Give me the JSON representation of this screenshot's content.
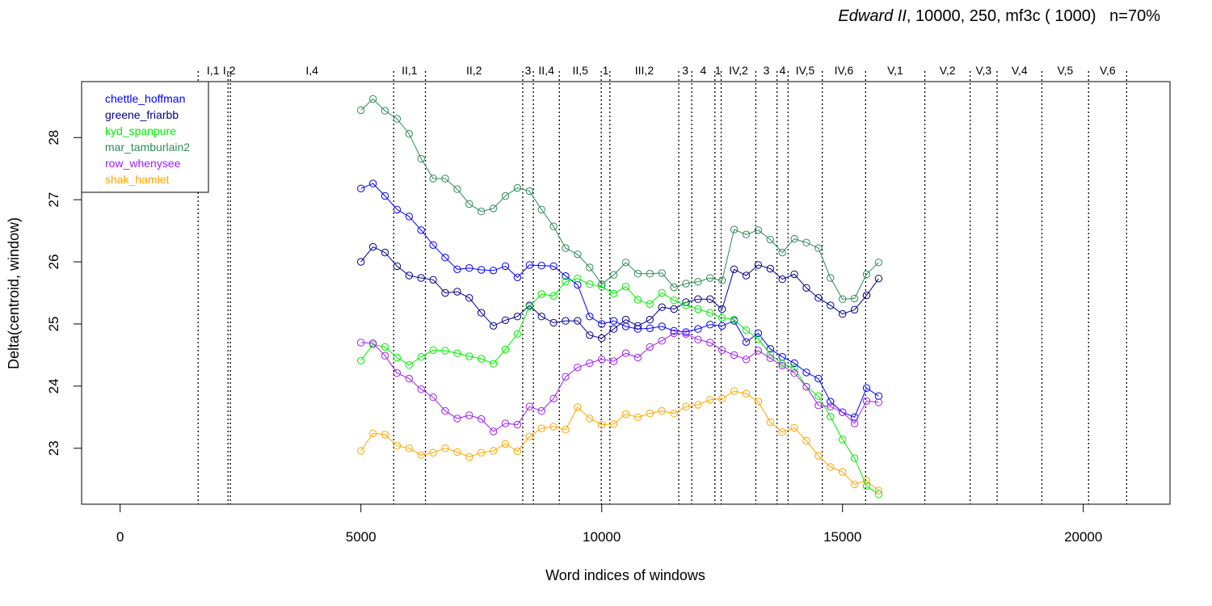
{
  "chart_data": {
    "type": "line",
    "title_italic": "Edward II",
    "title_rest": ", 10000, 250, mf3c ( 1000)   n=70%",
    "xlabel": "Word indices of windows",
    "ylabel": "Delta(centroid, window)",
    "xlim": [
      -800,
      21800
    ],
    "ylim": [
      22.1,
      28.9
    ],
    "xticks": [
      0,
      5000,
      10000,
      15000,
      20000
    ],
    "yticks": [
      23,
      24,
      25,
      26,
      27,
      28
    ],
    "grid": false,
    "legend_position": "top-left",
    "scenes": [
      {
        "label": "I,1",
        "x": 1620
      },
      {
        "label": "I,2",
        "x": 2240
      },
      {
        "label": "I,4",
        "x": 2290
      },
      {
        "label": "II,1",
        "x": 5680
      },
      {
        "label": "II,2",
        "x": 6340
      },
      {
        "label": "3",
        "x": 8360
      },
      {
        "label": "II,4",
        "x": 8580
      },
      {
        "label": "II,5",
        "x": 9120
      },
      {
        "label": "1",
        "x": 9990
      },
      {
        "label": "III,2",
        "x": 10170
      },
      {
        "label": "3",
        "x": 11600
      },
      {
        "label": "4",
        "x": 11870
      },
      {
        "label": "1",
        "x": 12350
      },
      {
        "label": "IV,2",
        "x": 12480
      },
      {
        "label": "3",
        "x": 13200
      },
      {
        "label": "4",
        "x": 13640
      },
      {
        "label": "IV,5",
        "x": 13870
      },
      {
        "label": "IV,6",
        "x": 14580
      },
      {
        "label": "V,1",
        "x": 15480
      },
      {
        "label": "V,2",
        "x": 16710
      },
      {
        "label": "V,3",
        "x": 17650
      },
      {
        "label": "V,4",
        "x": 18210
      },
      {
        "label": "V,5",
        "x": 19140
      },
      {
        "label": "V,6",
        "x": 20110
      },
      {
        "label": "",
        "x": 20900
      }
    ],
    "x": [
      5000,
      5250,
      5500,
      5750,
      6000,
      6250,
      6500,
      6750,
      7000,
      7250,
      7500,
      7750,
      8000,
      8250,
      8500,
      8750,
      9000,
      9250,
      9500,
      9750,
      10000,
      10250,
      10500,
      10750,
      11000,
      11250,
      11500,
      11750,
      12000,
      12250,
      12500,
      12750,
      13000,
      13250,
      13500,
      13750,
      14000,
      14250,
      14500,
      14750,
      15000,
      15250,
      15500,
      15750
    ],
    "series": [
      {
        "name": "chettle_hoffman",
        "color": "#0000ff",
        "values": [
          27.18,
          27.26,
          27.06,
          26.84,
          26.73,
          26.51,
          26.27,
          26.07,
          25.88,
          25.9,
          25.87,
          25.86,
          25.93,
          25.75,
          25.95,
          25.94,
          25.93,
          25.77,
          25.63,
          25.12,
          25.0,
          25.05,
          24.96,
          24.92,
          24.93,
          24.96,
          24.89,
          24.87,
          24.92,
          24.99,
          24.97,
          25.05,
          24.71,
          24.85,
          24.6,
          24.47,
          24.37,
          24.22,
          24.12,
          23.75,
          23.58,
          23.5,
          23.97,
          23.84
        ]
      },
      {
        "name": "greene_friarbb",
        "color": "#00008b",
        "values": [
          26.0,
          26.24,
          26.15,
          25.93,
          25.78,
          25.74,
          25.71,
          25.5,
          25.52,
          25.42,
          25.18,
          24.97,
          25.06,
          25.12,
          25.3,
          25.12,
          25.02,
          25.05,
          25.05,
          24.82,
          24.77,
          24.92,
          25.07,
          24.97,
          25.07,
          25.27,
          25.24,
          25.35,
          25.4,
          25.4,
          25.24,
          25.88,
          25.78,
          25.95,
          25.89,
          25.72,
          25.8,
          25.58,
          25.42,
          25.3,
          25.16,
          25.23,
          25.46,
          25.73
        ]
      },
      {
        "name": "kyd_spanpure",
        "color": "#00ee00",
        "values": [
          24.41,
          24.67,
          24.63,
          24.46,
          24.34,
          24.47,
          24.58,
          24.57,
          24.53,
          24.48,
          24.44,
          24.36,
          24.59,
          24.84,
          25.28,
          25.48,
          25.45,
          25.68,
          25.73,
          25.64,
          25.6,
          25.49,
          25.6,
          25.39,
          25.32,
          25.5,
          25.38,
          25.3,
          25.24,
          25.18,
          25.1,
          25.07,
          24.9,
          24.76,
          24.51,
          24.36,
          24.29,
          23.99,
          23.84,
          23.51,
          23.14,
          22.84,
          22.39,
          22.26
        ]
      },
      {
        "name": "mar_tamburlain2",
        "color": "#2e8b57",
        "values": [
          28.44,
          28.62,
          28.43,
          28.3,
          28.06,
          27.66,
          27.34,
          27.34,
          27.17,
          26.93,
          26.81,
          26.86,
          27.06,
          27.19,
          27.14,
          26.84,
          26.57,
          26.22,
          26.12,
          25.91,
          25.64,
          25.79,
          25.99,
          25.81,
          25.81,
          25.82,
          25.59,
          25.65,
          25.68,
          25.74,
          25.7,
          26.52,
          26.44,
          26.51,
          26.36,
          26.15,
          26.37,
          26.31,
          26.22,
          25.74,
          25.4,
          25.41,
          25.8,
          25.99
        ]
      },
      {
        "name": "row_whenysee",
        "color": "#a020f0",
        "values": [
          24.7,
          24.69,
          24.49,
          24.21,
          24.12,
          23.95,
          23.82,
          23.6,
          23.48,
          23.53,
          23.47,
          23.27,
          23.4,
          23.38,
          23.67,
          23.6,
          23.8,
          24.15,
          24.3,
          24.37,
          24.43,
          24.4,
          24.53,
          24.46,
          24.63,
          24.73,
          24.85,
          24.84,
          24.75,
          24.7,
          24.58,
          24.5,
          24.43,
          24.57,
          24.45,
          24.33,
          24.21,
          23.99,
          23.69,
          23.67,
          23.58,
          23.4,
          23.76,
          23.74
        ]
      },
      {
        "name": "shak_hamlet",
        "color": "#ffa500",
        "values": [
          22.96,
          23.24,
          23.22,
          23.04,
          23.0,
          22.89,
          22.93,
          23.0,
          22.94,
          22.86,
          22.93,
          22.96,
          23.07,
          22.95,
          23.19,
          23.32,
          23.35,
          23.3,
          23.66,
          23.48,
          23.38,
          23.39,
          23.55,
          23.5,
          23.56,
          23.6,
          23.56,
          23.67,
          23.7,
          23.78,
          23.8,
          23.92,
          23.88,
          23.75,
          23.42,
          23.26,
          23.33,
          23.12,
          22.88,
          22.7,
          22.62,
          22.42,
          22.48,
          22.32
        ]
      }
    ]
  }
}
